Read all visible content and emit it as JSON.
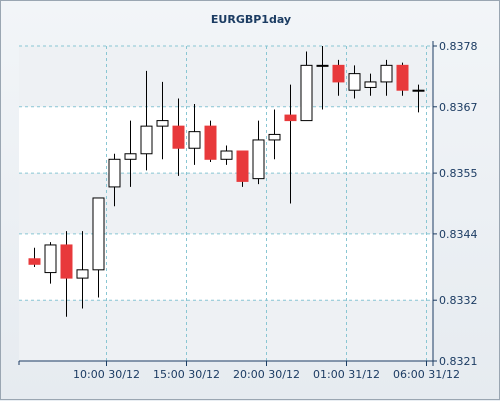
{
  "chart_data": {
    "type": "candlestick",
    "title": "EURGBP1day",
    "xlabel": "",
    "ylabel": "",
    "ylim": [
      0.8321,
      0.8378
    ],
    "y_ticks": [
      "0.8378",
      "0.8367",
      "0.8355",
      "0.8344",
      "0.8332",
      "0.8321"
    ],
    "x_tick_labels": [
      "10:00 30/12",
      "15:00 30/12",
      "20:00 30/12",
      "01:00 31/12",
      "06:00 31/12"
    ],
    "x_tick_candle_index": [
      4.5,
      9.5,
      14.5,
      19.5,
      24.5
    ],
    "grid": true,
    "colors": {
      "up": "#ffffff",
      "down": "#e8393b",
      "wick": "#000000",
      "grid": "#89c6d3",
      "band": "#ffffff"
    },
    "candles": [
      {
        "o": 0.83395,
        "h": 0.83415,
        "l": 0.8338,
        "c": 0.83385
      },
      {
        "o": 0.8337,
        "h": 0.83425,
        "l": 0.8335,
        "c": 0.8342
      },
      {
        "o": 0.8342,
        "h": 0.83445,
        "l": 0.8329,
        "c": 0.8336
      },
      {
        "o": 0.8336,
        "h": 0.83445,
        "l": 0.83305,
        "c": 0.83375
      },
      {
        "o": 0.83375,
        "h": 0.83505,
        "l": 0.83325,
        "c": 0.83505
      },
      {
        "o": 0.83525,
        "h": 0.83585,
        "l": 0.8349,
        "c": 0.83575
      },
      {
        "o": 0.83575,
        "h": 0.83645,
        "l": 0.83525,
        "c": 0.83585
      },
      {
        "o": 0.83585,
        "h": 0.83735,
        "l": 0.83555,
        "c": 0.83635
      },
      {
        "o": 0.83635,
        "h": 0.83715,
        "l": 0.83575,
        "c": 0.83645
      },
      {
        "o": 0.83635,
        "h": 0.83685,
        "l": 0.83545,
        "c": 0.83595
      },
      {
        "o": 0.83595,
        "h": 0.83675,
        "l": 0.83565,
        "c": 0.83625
      },
      {
        "o": 0.83635,
        "h": 0.83645,
        "l": 0.8357,
        "c": 0.83575
      },
      {
        "o": 0.83575,
        "h": 0.836,
        "l": 0.83565,
        "c": 0.8359
      },
      {
        "o": 0.8359,
        "h": 0.8359,
        "l": 0.83525,
        "c": 0.83535
      },
      {
        "o": 0.8354,
        "h": 0.83645,
        "l": 0.8353,
        "c": 0.8361
      },
      {
        "o": 0.8361,
        "h": 0.83665,
        "l": 0.83575,
        "c": 0.8362
      },
      {
        "o": 0.83655,
        "h": 0.8371,
        "l": 0.83495,
        "c": 0.83645
      },
      {
        "o": 0.83645,
        "h": 0.8377,
        "l": 0.83645,
        "c": 0.83745
      },
      {
        "o": 0.83745,
        "h": 0.8378,
        "l": 0.83665,
        "c": 0.83745
      },
      {
        "o": 0.83745,
        "h": 0.83755,
        "l": 0.8369,
        "c": 0.83715
      },
      {
        "o": 0.837,
        "h": 0.83745,
        "l": 0.83685,
        "c": 0.8373
      },
      {
        "o": 0.83705,
        "h": 0.8373,
        "l": 0.8369,
        "c": 0.83715
      },
      {
        "o": 0.83715,
        "h": 0.83755,
        "l": 0.8369,
        "c": 0.83745
      },
      {
        "o": 0.83745,
        "h": 0.8375,
        "l": 0.8369,
        "c": 0.837
      },
      {
        "o": 0.837,
        "h": 0.8371,
        "l": 0.8366,
        "c": 0.837
      }
    ]
  }
}
